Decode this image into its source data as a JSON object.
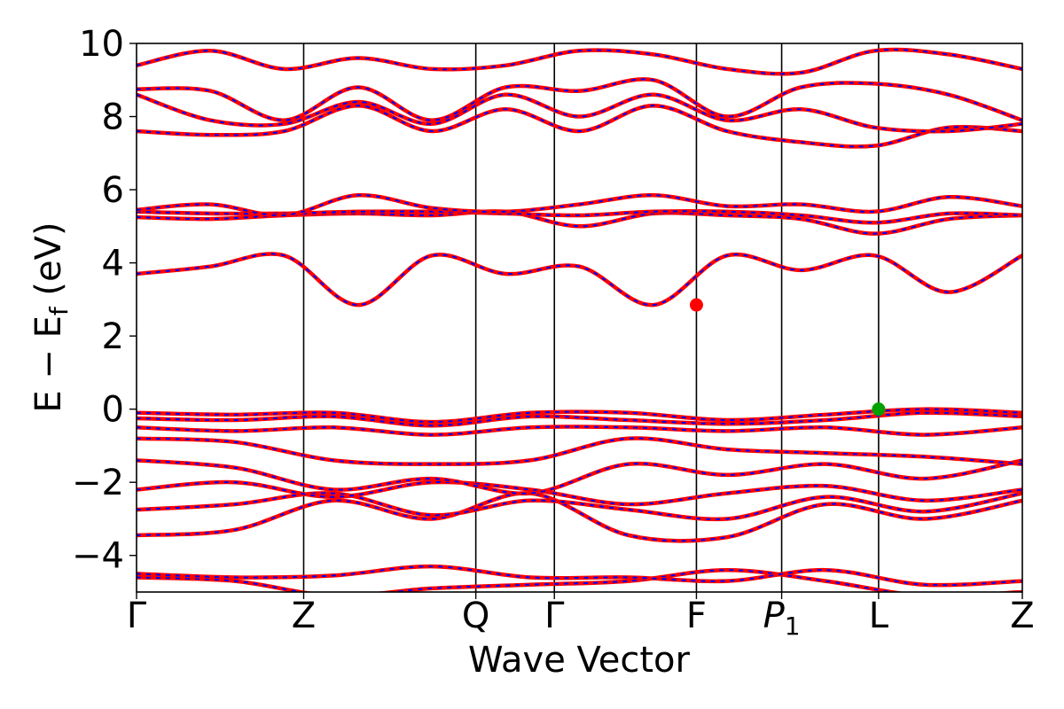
{
  "chart_data": {
    "type": "line",
    "xlabel": "Wave Vector",
    "ylabel": "E − E_f (eV)",
    "ylim": [
      -5,
      10
    ],
    "yticks": [
      -4,
      -2,
      0,
      2,
      4,
      6,
      8,
      10
    ],
    "ytick_labels": [
      "−4",
      "−2",
      "0",
      "2",
      "4",
      "6",
      "8",
      "10"
    ],
    "kpath": [
      {
        "label": "Γ",
        "x": 0.0
      },
      {
        "label": "Z",
        "x": 1.0
      },
      {
        "label": "Q",
        "x": 2.03
      },
      {
        "label": "Γ",
        "x": 2.5
      },
      {
        "label": "F",
        "x": 3.35
      },
      {
        "label": "P",
        "sub": "1",
        "italic": true,
        "x": 3.86
      },
      {
        "label": "L",
        "x": 4.44
      },
      {
        "label": "Z",
        "x": 5.3
      }
    ],
    "band_colors": {
      "solid": "#ff0000",
      "dashed": "#0000ff"
    },
    "markers": [
      {
        "name": "cbm",
        "x": 3.35,
        "y": 2.85,
        "color": "#ff0000"
      },
      {
        "name": "vbm",
        "x": 4.44,
        "y": 0.0,
        "color": "#00a000"
      }
    ],
    "bands": [
      {
        "name": "band-1",
        "values": [
          -4.6,
          -4.7,
          -5.1,
          -4.9,
          -4.8,
          -4.7,
          -4.4,
          -4.7,
          -5.1,
          -5.0
        ]
      },
      {
        "name": "band-2",
        "values": [
          -4.5,
          -4.6,
          -4.55,
          -4.3,
          -4.6,
          -4.6,
          -4.7,
          -4.4,
          -4.8,
          -4.7
        ]
      },
      {
        "name": "band-3",
        "values": [
          -3.45,
          -3.3,
          -2.5,
          -3.0,
          -2.3,
          -3.45,
          -3.5,
          -2.6,
          -3.0,
          -2.5
        ]
      },
      {
        "name": "band-4",
        "values": [
          -2.75,
          -2.6,
          -2.3,
          -2.9,
          -2.5,
          -2.75,
          -3.0,
          -2.4,
          -2.8,
          -2.3
        ]
      },
      {
        "name": "band-5",
        "values": [
          -2.2,
          -2.0,
          -2.4,
          -2.0,
          -2.2,
          -2.6,
          -2.3,
          -2.1,
          -2.5,
          -2.2
        ]
      },
      {
        "name": "band-6",
        "values": [
          -1.4,
          -1.6,
          -2.2,
          -1.9,
          -2.3,
          -1.5,
          -1.8,
          -1.5,
          -1.9,
          -1.4
        ]
      },
      {
        "name": "band-7",
        "values": [
          -0.8,
          -0.9,
          -1.4,
          -1.5,
          -1.4,
          -0.8,
          -1.1,
          -1.2,
          -1.3,
          -1.5
        ]
      },
      {
        "name": "band-8",
        "values": [
          -0.5,
          -0.6,
          -0.5,
          -0.7,
          -0.5,
          -0.5,
          -0.6,
          -0.5,
          -0.7,
          -0.5
        ]
      },
      {
        "name": "band-9",
        "values": [
          -0.25,
          -0.3,
          -0.2,
          -0.45,
          -0.2,
          -0.3,
          -0.4,
          -0.3,
          -0.1,
          -0.2
        ]
      },
      {
        "name": "band-10",
        "values": [
          -0.1,
          -0.15,
          -0.1,
          -0.35,
          -0.1,
          -0.1,
          -0.3,
          -0.15,
          0.0,
          -0.1
        ]
      },
      {
        "name": "band-11",
        "values": [
          3.7,
          3.9,
          4.2,
          2.85,
          4.2,
          3.7,
          3.9,
          2.85,
          4.2,
          3.8,
          4.2,
          3.2,
          4.2
        ]
      },
      {
        "name": "band-12",
        "values": [
          5.25,
          5.2,
          5.3,
          5.35,
          5.3,
          5.4,
          5.0,
          5.35,
          5.3,
          5.2,
          4.8,
          5.2,
          5.3
        ]
      },
      {
        "name": "band-13",
        "values": [
          5.4,
          5.35,
          5.35,
          5.4,
          5.4,
          5.35,
          5.3,
          5.4,
          5.4,
          5.3,
          5.1,
          5.35,
          5.3
        ]
      },
      {
        "name": "band-14",
        "values": [
          5.45,
          5.6,
          5.3,
          5.85,
          5.5,
          5.4,
          5.6,
          5.85,
          5.55,
          5.6,
          5.4,
          5.8,
          5.55
        ]
      },
      {
        "name": "band-15",
        "values": [
          7.6,
          7.5,
          7.6,
          8.3,
          7.6,
          8.2,
          7.6,
          8.3,
          7.6,
          7.3,
          7.2,
          7.7,
          7.6
        ]
      },
      {
        "name": "band-16",
        "values": [
          8.6,
          7.9,
          7.8,
          8.4,
          7.8,
          8.6,
          8.0,
          8.6,
          7.9,
          8.2,
          7.7,
          7.6,
          7.8
        ]
      },
      {
        "name": "band-17",
        "values": [
          8.75,
          8.7,
          7.9,
          8.8,
          7.9,
          8.8,
          8.7,
          9.0,
          8.0,
          8.8,
          8.9,
          8.6,
          7.9
        ]
      },
      {
        "name": "band-18",
        "values": [
          9.4,
          9.8,
          9.3,
          9.6,
          9.3,
          9.4,
          9.8,
          9.7,
          9.3,
          9.2,
          9.8,
          9.7,
          9.3
        ]
      }
    ]
  }
}
